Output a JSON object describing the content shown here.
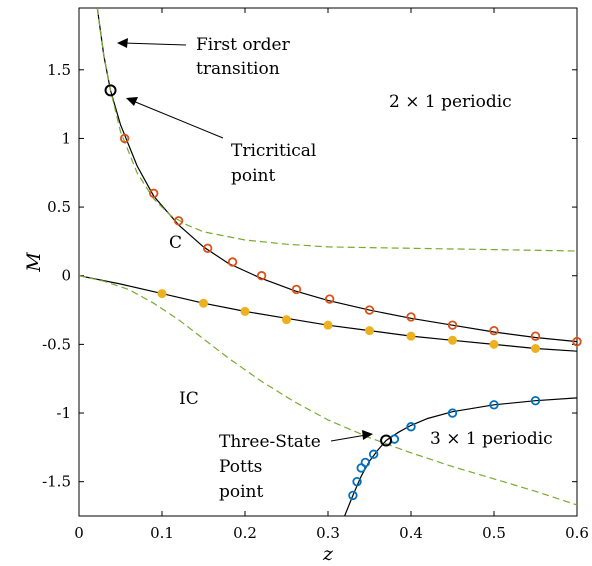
{
  "chart_data": {
    "type": "line",
    "title": "",
    "xlabel": "z",
    "ylabel": "M",
    "xlim": [
      0,
      0.6
    ],
    "ylim": [
      -1.75,
      1.95
    ],
    "grid": false,
    "x_ticks": [
      {
        "value": 0,
        "label": "0"
      },
      {
        "value": 0.1,
        "label": "0.1"
      },
      {
        "value": 0.2,
        "label": "0.2"
      },
      {
        "value": 0.3,
        "label": "0.3"
      },
      {
        "value": 0.4,
        "label": "0.4"
      },
      {
        "value": 0.5,
        "label": "0.5"
      },
      {
        "value": 0.6,
        "label": "0.6"
      }
    ],
    "y_ticks": [
      {
        "value": 1.5,
        "label": "1.5"
      },
      {
        "value": 1,
        "label": "1"
      },
      {
        "value": 0.5,
        "label": "0.5"
      },
      {
        "value": 0,
        "label": "0"
      },
      {
        "value": -0.5,
        "label": "-0.5"
      },
      {
        "value": -1,
        "label": "-1"
      },
      {
        "value": -1.5,
        "label": "-1.5"
      }
    ],
    "colors": {
      "black": "#000000",
      "dashed_green": "#77ac30",
      "orange": "#d95319",
      "yellow": "#edb120",
      "blue": "#0072bd"
    },
    "series": [
      {
        "style": "solid",
        "color_key": "black",
        "points": [
          [
            0.022,
            1.95
          ],
          [
            0.03,
            1.6
          ],
          [
            0.038,
            1.35
          ],
          [
            0.05,
            1.1
          ],
          [
            0.07,
            0.8
          ],
          [
            0.09,
            0.58
          ],
          [
            0.12,
            0.37
          ],
          [
            0.15,
            0.21
          ],
          [
            0.18,
            0.09
          ],
          [
            0.22,
            -0.02
          ],
          [
            0.26,
            -0.11
          ],
          [
            0.3,
            -0.18
          ],
          [
            0.35,
            -0.25
          ],
          [
            0.4,
            -0.31
          ],
          [
            0.45,
            -0.36
          ],
          [
            0.5,
            -0.41
          ],
          [
            0.55,
            -0.45
          ],
          [
            0.6,
            -0.48
          ]
        ]
      },
      {
        "style": "solid",
        "color_key": "black",
        "points": [
          [
            0,
            0
          ],
          [
            0.05,
            -0.06
          ],
          [
            0.1,
            -0.13
          ],
          [
            0.15,
            -0.2
          ],
          [
            0.2,
            -0.26
          ],
          [
            0.25,
            -0.31
          ],
          [
            0.3,
            -0.36
          ],
          [
            0.35,
            -0.4
          ],
          [
            0.4,
            -0.44
          ],
          [
            0.45,
            -0.47
          ],
          [
            0.5,
            -0.5
          ],
          [
            0.55,
            -0.53
          ],
          [
            0.6,
            -0.55
          ]
        ]
      },
      {
        "style": "solid",
        "color_key": "black",
        "points": [
          [
            0.32,
            -1.75
          ],
          [
            0.33,
            -1.6
          ],
          [
            0.34,
            -1.46
          ],
          [
            0.35,
            -1.35
          ],
          [
            0.36,
            -1.27
          ],
          [
            0.37,
            -1.2
          ],
          [
            0.385,
            -1.14
          ],
          [
            0.4,
            -1.09
          ],
          [
            0.42,
            -1.04
          ],
          [
            0.45,
            -0.99
          ],
          [
            0.5,
            -0.94
          ],
          [
            0.55,
            -0.91
          ],
          [
            0.6,
            -0.89
          ]
        ]
      },
      {
        "style": "dashed",
        "color_key": "dashed_green",
        "points": [
          [
            0.022,
            1.95
          ],
          [
            0.03,
            1.6
          ],
          [
            0.038,
            1.35
          ],
          [
            0.05,
            1.05
          ],
          [
            0.07,
            0.75
          ],
          [
            0.09,
            0.56
          ],
          [
            0.11,
            0.44
          ],
          [
            0.13,
            0.37
          ],
          [
            0.15,
            0.32
          ],
          [
            0.2,
            0.26
          ],
          [
            0.25,
            0.23
          ],
          [
            0.3,
            0.21
          ],
          [
            0.4,
            0.2
          ],
          [
            0.5,
            0.19
          ],
          [
            0.6,
            0.18
          ]
        ]
      },
      {
        "style": "dashed",
        "color_key": "dashed_green",
        "points": [
          [
            0,
            0
          ],
          [
            0.03,
            -0.04
          ],
          [
            0.06,
            -0.1
          ],
          [
            0.09,
            -0.2
          ],
          [
            0.12,
            -0.32
          ],
          [
            0.15,
            -0.46
          ],
          [
            0.18,
            -0.6
          ],
          [
            0.22,
            -0.77
          ],
          [
            0.26,
            -0.92
          ],
          [
            0.3,
            -1.05
          ],
          [
            0.35,
            -1.18
          ],
          [
            0.4,
            -1.29
          ],
          [
            0.45,
            -1.39
          ],
          [
            0.5,
            -1.48
          ],
          [
            0.55,
            -1.57
          ],
          [
            0.6,
            -1.67
          ]
        ]
      }
    ],
    "markers": [
      {
        "name": "orange-open-circles",
        "shape": "open",
        "color_key": "orange",
        "points": [
          [
            0.055,
            1.0
          ],
          [
            0.09,
            0.6
          ],
          [
            0.12,
            0.4
          ],
          [
            0.155,
            0.2
          ],
          [
            0.185,
            0.1
          ],
          [
            0.22,
            0.0
          ],
          [
            0.262,
            -0.1
          ],
          [
            0.302,
            -0.17
          ],
          [
            0.35,
            -0.25
          ],
          [
            0.4,
            -0.3
          ],
          [
            0.45,
            -0.36
          ],
          [
            0.5,
            -0.4
          ],
          [
            0.55,
            -0.44
          ],
          [
            0.6,
            -0.48
          ]
        ]
      },
      {
        "name": "yellow-filled-circles",
        "shape": "filled",
        "color_key": "yellow",
        "points": [
          [
            0.1,
            -0.13
          ],
          [
            0.15,
            -0.2
          ],
          [
            0.2,
            -0.26
          ],
          [
            0.25,
            -0.32
          ],
          [
            0.3,
            -0.36
          ],
          [
            0.35,
            -0.4
          ],
          [
            0.4,
            -0.44
          ],
          [
            0.45,
            -0.47
          ],
          [
            0.5,
            -0.5
          ],
          [
            0.55,
            -0.53
          ]
        ]
      },
      {
        "name": "blue-open-circles",
        "shape": "open",
        "color_key": "blue",
        "points": [
          [
            0.33,
            -1.6
          ],
          [
            0.335,
            -1.5
          ],
          [
            0.34,
            -1.4
          ],
          [
            0.345,
            -1.36
          ],
          [
            0.355,
            -1.3
          ],
          [
            0.38,
            -1.19
          ],
          [
            0.4,
            -1.1
          ],
          [
            0.45,
            -1.0
          ],
          [
            0.5,
            -0.94
          ],
          [
            0.55,
            -0.91
          ]
        ]
      },
      {
        "name": "special-points",
        "shape": "open-bold",
        "color_key": "black",
        "points": [
          [
            0.038,
            1.35
          ],
          [
            0.37,
            -1.2
          ]
        ]
      }
    ],
    "annotations": [
      {
        "id": "first_order",
        "lines": [
          "First order",
          "transition"
        ]
      },
      {
        "id": "tricritical",
        "lines": [
          "Tricritical",
          "point"
        ]
      },
      {
        "id": "periodic_2x1",
        "text": "2 × 1 periodic"
      },
      {
        "id": "C",
        "text": "C"
      },
      {
        "id": "IC",
        "text": "IC"
      },
      {
        "id": "three_state",
        "lines": [
          "Three-State",
          "Potts",
          "point"
        ]
      },
      {
        "id": "periodic_3x1",
        "text": "3 × 1 periodic"
      }
    ]
  }
}
